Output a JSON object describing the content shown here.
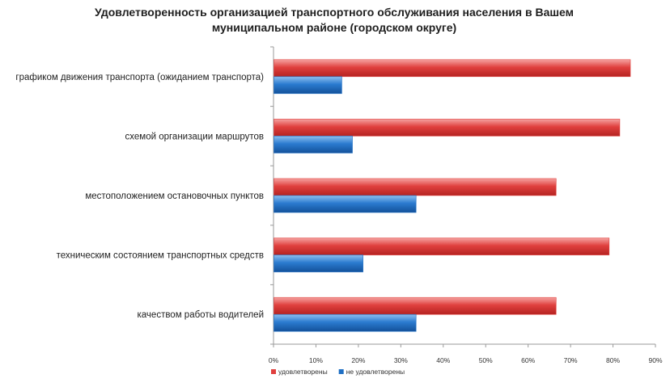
{
  "chart_data": {
    "type": "bar",
    "orientation": "horizontal",
    "title_lines": [
      "Удовлетворенность организацией транспортного обслуживания населения в Вашем",
      "муниципальном районе (городском округе)"
    ],
    "categories": [
      "графиком движения транспорта (ожиданием транспорта)",
      "схемой организации маршрутов",
      "местоположением остановочных пунктов",
      "техническим состоянием транспортных средств",
      "качеством работы водителей"
    ],
    "series": [
      {
        "name": "удовлетворены",
        "color": "#e0403e",
        "values": [
          84,
          81.5,
          66.5,
          79,
          66.5
        ]
      },
      {
        "name": "не удовлетворены",
        "color": "#1f6fc4",
        "values": [
          16,
          18.5,
          33.5,
          21,
          33.5
        ]
      }
    ],
    "xlim": [
      0,
      90
    ],
    "xticks": [
      "0%",
      "10%",
      "20%",
      "30%",
      "40%",
      "50%",
      "60%",
      "70%",
      "80%",
      "90%"
    ],
    "grid": false,
    "legend_position": "bottom-left"
  }
}
